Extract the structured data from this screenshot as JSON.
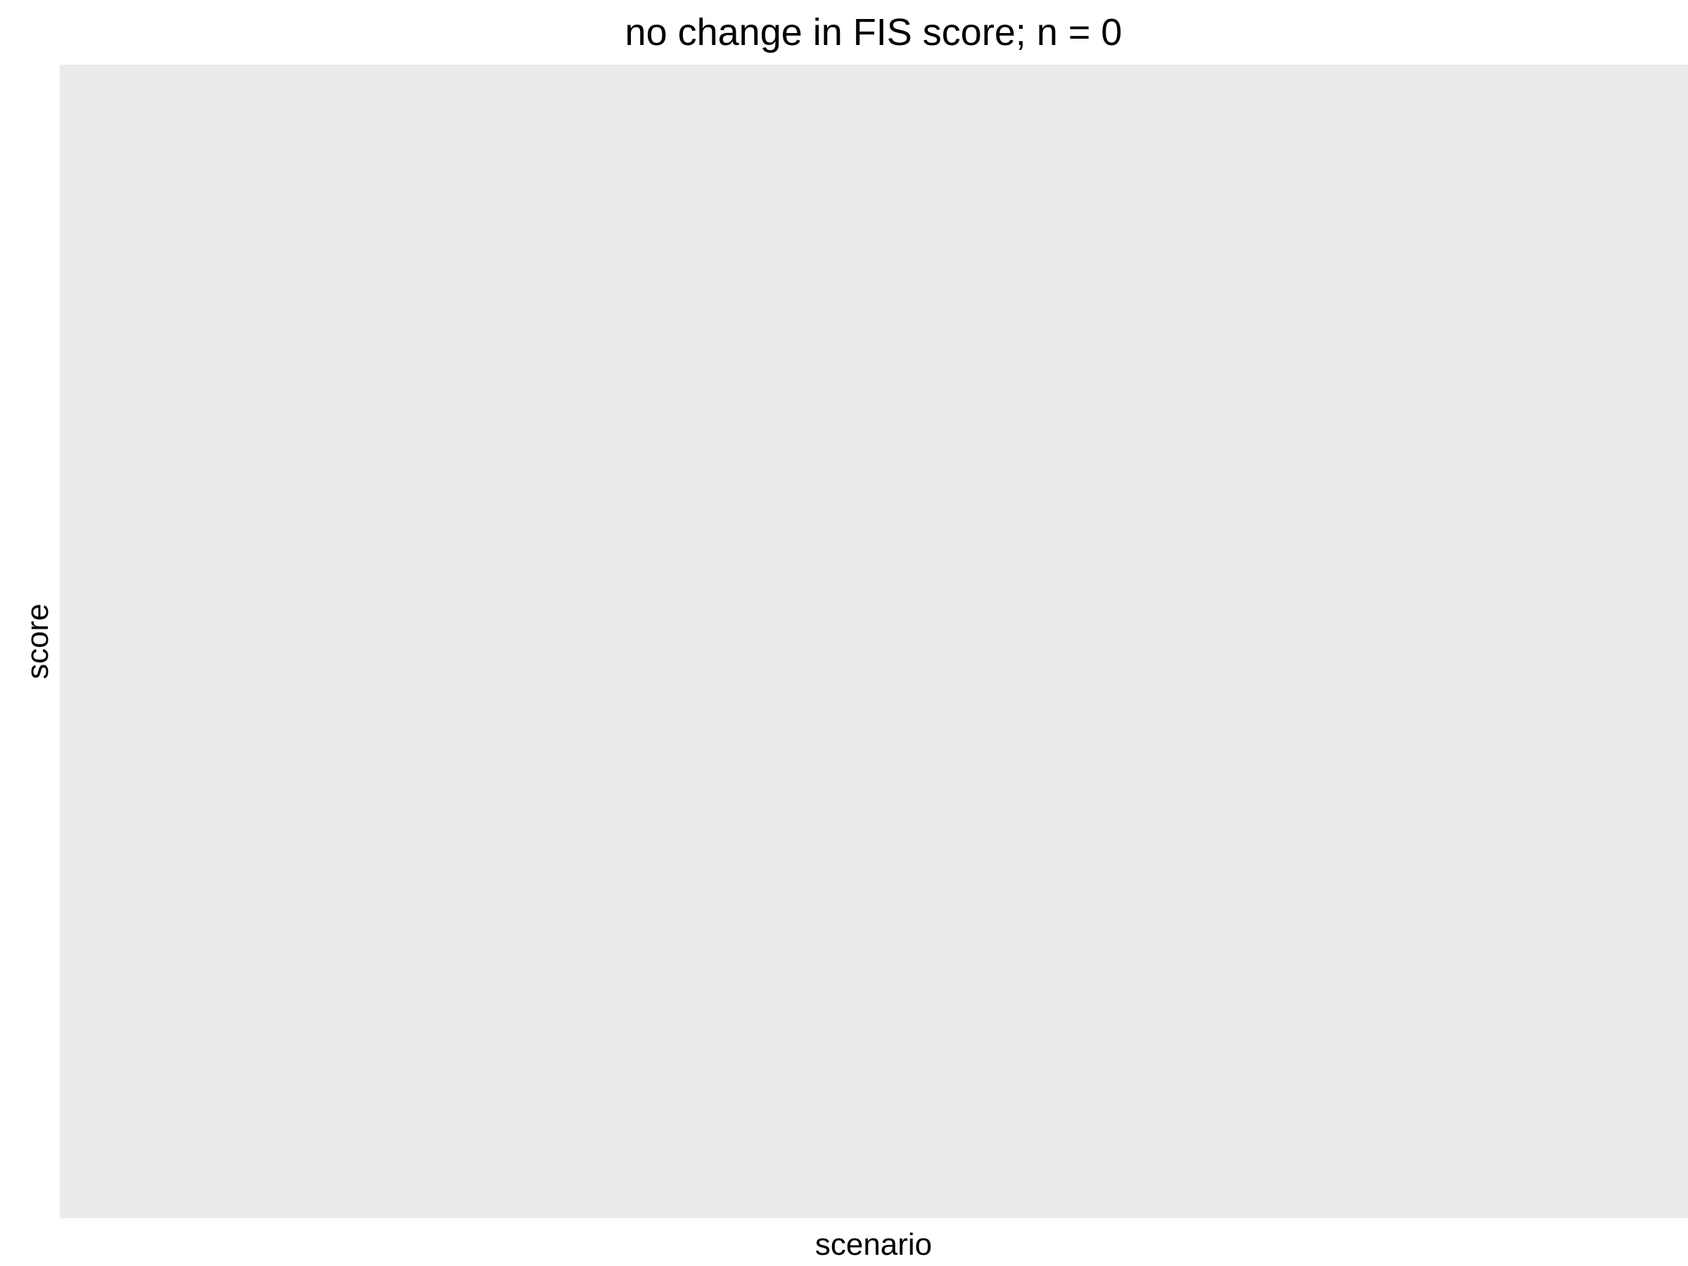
{
  "chart_data": {
    "type": "scatter",
    "title": "no change in FIS score; n = 0",
    "xlabel": "scenario",
    "ylabel": "score",
    "series": [],
    "grid": false,
    "panel_background": "#ebebeb",
    "text_color": "#000000"
  }
}
